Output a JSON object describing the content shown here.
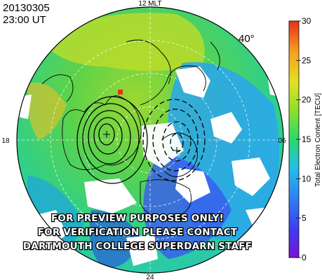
{
  "header": {
    "date": "20130305",
    "time": "23:00 UT"
  },
  "map": {
    "latitude_label": "40°",
    "mlt_labels": {
      "top": "12 MLT",
      "left": "18",
      "right": "06",
      "bottom": "24"
    }
  },
  "colorbar": {
    "label": "Total Electron Content [TECU]",
    "min": 0,
    "max": 30,
    "ticks": [
      "0",
      "5",
      "10",
      "15",
      "20",
      "25",
      "30"
    ],
    "colors": [
      "#7d10d8",
      "#3d3df0",
      "#2f7ff5",
      "#22c0e8",
      "#2ad86a",
      "#8ae02a",
      "#e2e222",
      "#f5a020",
      "#e83018"
    ]
  },
  "watermark": {
    "lines": [
      "FOR PREVIEW PURPOSES ONLY!",
      "FOR VERIFICATION PLEASE CONTACT",
      "DARTMOUTH COLLEGE SUPERDARN STAFF"
    ]
  }
}
